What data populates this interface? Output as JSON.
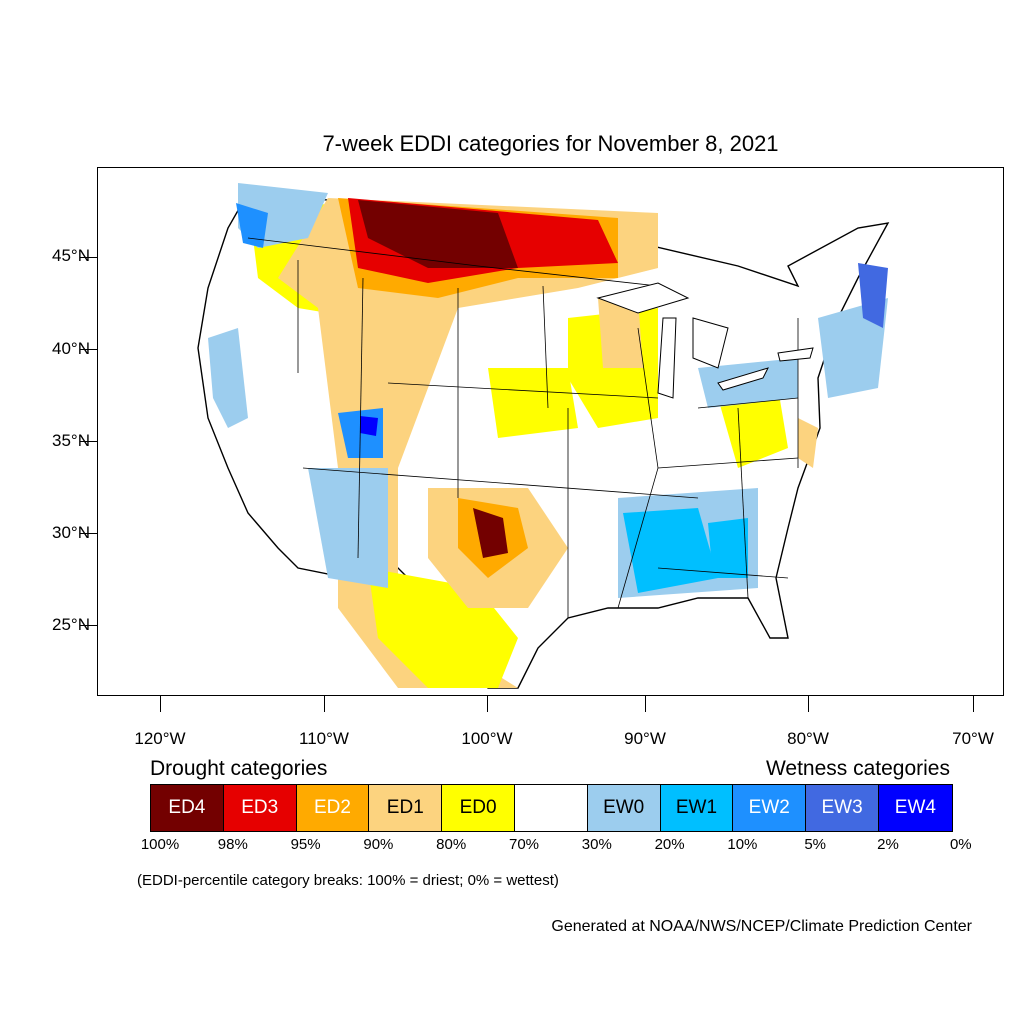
{
  "title": "7-week EDDI categories for November 8, 2021",
  "axes": {
    "lat_labels": [
      "45°N",
      "40°N",
      "35°N",
      "30°N",
      "25°N"
    ],
    "lon_labels": [
      "120°W",
      "110°W",
      "100°W",
      "90°W",
      "80°W",
      "70°W"
    ]
  },
  "legend": {
    "drought_heading": "Drought categories",
    "wetness_heading": "Wetness categories",
    "categories": [
      {
        "label": "ED4",
        "color": "#730000",
        "text_color": "#ffffff"
      },
      {
        "label": "ED3",
        "color": "#e60000",
        "text_color": "#ffffff"
      },
      {
        "label": "ED2",
        "color": "#ffaa00",
        "text_color": "#ffffff"
      },
      {
        "label": "ED1",
        "color": "#fcd37f",
        "text_color": "#000000"
      },
      {
        "label": "ED0",
        "color": "#ffff00",
        "text_color": "#000000"
      },
      {
        "label": "",
        "color": "#ffffff",
        "text_color": "#000000"
      },
      {
        "label": "EW0",
        "color": "#9ccdee",
        "text_color": "#000000"
      },
      {
        "label": "EW1",
        "color": "#00bfff",
        "text_color": "#000000"
      },
      {
        "label": "EW2",
        "color": "#1e90ff",
        "text_color": "#ffffff"
      },
      {
        "label": "EW3",
        "color": "#4169e1",
        "text_color": "#ffffff"
      },
      {
        "label": "EW4",
        "color": "#0000ff",
        "text_color": "#ffffff"
      }
    ],
    "breaks": [
      "100%",
      "98%",
      "95%",
      "90%",
      "80%",
      "70%",
      "30%",
      "20%",
      "10%",
      "5%",
      "2%",
      "0%"
    ]
  },
  "note": "(EDDI-percentile category breaks: 100% = driest; 0% = wettest)",
  "credit": "Generated at NOAA/NWS/NCEP/Climate Prediction Center"
}
